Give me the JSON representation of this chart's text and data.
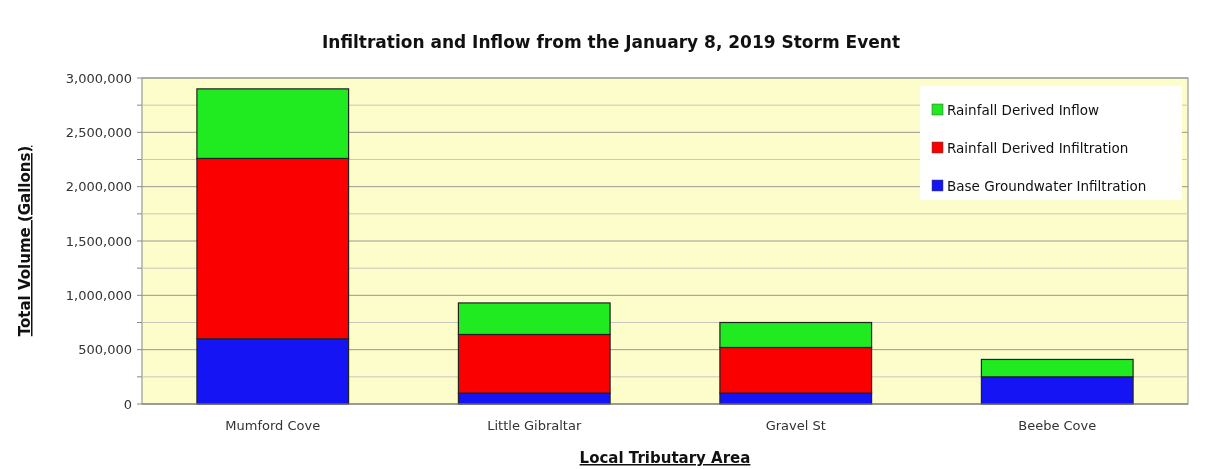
{
  "chart_data": {
    "type": "bar",
    "title": "Infiltration and Inflow from the January 8, 2019 Storm Event",
    "xlabel": "Local Tributary Area",
    "ylabel": "Total Volume (Gallons)",
    "categories": [
      "Mumford Cove",
      "Little Gibraltar",
      "Gravel St",
      "Beebe Cove"
    ],
    "stacked": true,
    "series": [
      {
        "name": "Base Groundwater Infiltration",
        "color": "#1414f5",
        "values": [
          600000,
          100000,
          100000,
          250000
        ]
      },
      {
        "name": "Rainfall Derived Infiltration",
        "color": "#fa0000",
        "values": [
          1660000,
          540000,
          420000,
          0
        ]
      },
      {
        "name": "Rainfall Derived Inflow",
        "color": "#20ea20",
        "values": [
          640000,
          290000,
          230000,
          160000
        ]
      }
    ],
    "ylim": [
      0,
      3000000
    ],
    "yticks": [
      {
        "value": 0,
        "label": "0"
      },
      {
        "value": 250000,
        "label": null
      },
      {
        "value": 500000,
        "label": "500,000"
      },
      {
        "value": 750000,
        "label": null
      },
      {
        "value": 1000000,
        "label": "1,000,000"
      },
      {
        "value": 1250000,
        "label": null
      },
      {
        "value": 1500000,
        "label": "1,500,000"
      },
      {
        "value": 1750000,
        "label": null
      },
      {
        "value": 2000000,
        "label": "2,000,000"
      },
      {
        "value": 2250000,
        "label": null
      },
      {
        "value": 2500000,
        "label": "2,500,000"
      },
      {
        "value": 2750000,
        "label": null
      },
      {
        "value": 3000000,
        "label": "3,000,000"
      }
    ],
    "grid": "y",
    "legend": "top right"
  }
}
